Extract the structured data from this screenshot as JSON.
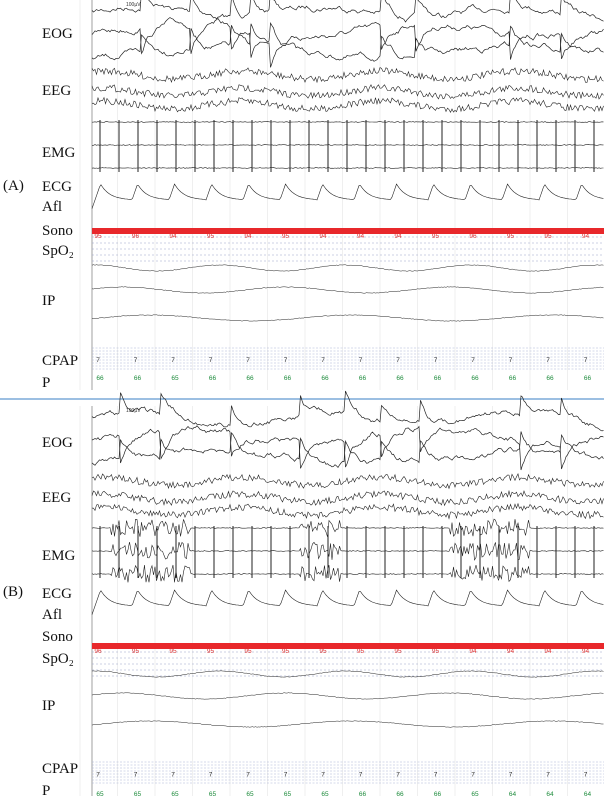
{
  "panels": [
    {
      "label": "(A)",
      "scale": "100µV",
      "channels": [
        "EOG",
        "EEG",
        "EMG",
        "ECG",
        "Afl",
        "Sono",
        "SpO₂",
        "IP",
        "CPAP",
        "P"
      ],
      "spo2": [
        95,
        96,
        94,
        95,
        94,
        95,
        94,
        94,
        94,
        95,
        96,
        95,
        95,
        94
      ],
      "cpap": [
        7,
        7,
        7,
        7,
        7,
        7,
        7,
        7,
        7,
        7,
        7,
        7,
        7,
        7
      ],
      "pulse": [
        66,
        66,
        65,
        66,
        66,
        66,
        66,
        66,
        66,
        66,
        66,
        66,
        66,
        66
      ]
    },
    {
      "label": "(B)",
      "scale": "100µV",
      "channels": [
        "EOG",
        "EEG",
        "EMG",
        "ECG",
        "Afl",
        "Sono",
        "SpO₂",
        "IP",
        "CPAP",
        "P"
      ],
      "spo2": [
        96,
        95,
        95,
        95,
        95,
        95,
        95,
        95,
        95,
        95,
        94,
        94,
        94,
        94
      ],
      "cpap": [
        7,
        7,
        7,
        7,
        7,
        7,
        7,
        7,
        7,
        7,
        7,
        7,
        7,
        7
      ],
      "pulse": [
        65,
        65,
        65,
        65,
        65,
        65,
        65,
        66,
        66,
        66,
        65,
        64,
        64,
        64
      ]
    }
  ]
}
